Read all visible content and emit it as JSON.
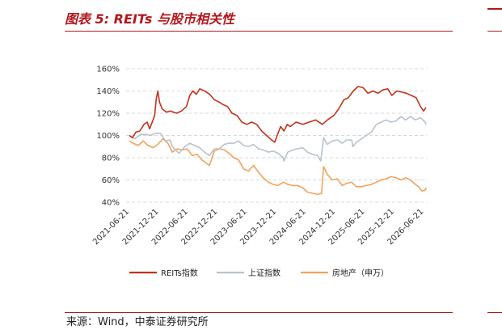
{
  "figure": {
    "title": "图表 5: REITs 与股市相关性",
    "source": "来源：Wind，中泰证券研究所"
  },
  "colors": {
    "title_red": "#b2171c",
    "reits": "#c4321b",
    "sse": "#b8c3cc",
    "real_estate": "#f4a25a",
    "grid": "#cccccc"
  },
  "chart_data": {
    "type": "line",
    "xlabel": "",
    "ylabel": "",
    "ylim": [
      40,
      160
    ],
    "y_ticks": [
      "40%",
      "60%",
      "80%",
      "100%",
      "120%",
      "140%",
      "160%"
    ],
    "y_tick_values": [
      40,
      60,
      80,
      100,
      120,
      140,
      160
    ],
    "x_ticks": [
      "2021-06-21",
      "2021-12-21",
      "2022-06-21",
      "2022-12-21",
      "2023-06-21",
      "2023-12-21",
      "2024-06-21",
      "2024-12-21",
      "2025-06-21",
      "2025-12-21",
      "2026-06-21"
    ],
    "x_range": [
      "2021-06-01",
      "2026-07-10"
    ],
    "grid": "horizontal dashed",
    "legend_position": "bottom",
    "series": [
      {
        "name": "REITs指数",
        "color": "#c4321b",
        "points": [
          [
            "2021-06-21",
            100
          ],
          [
            "2021-07-10",
            98
          ],
          [
            "2021-07-31",
            103
          ],
          [
            "2021-08-25",
            104
          ],
          [
            "2021-09-20",
            110
          ],
          [
            "2021-10-10",
            112
          ],
          [
            "2021-10-25",
            106
          ],
          [
            "2021-11-10",
            112
          ],
          [
            "2021-11-25",
            118
          ],
          [
            "2021-12-05",
            133
          ],
          [
            "2021-12-15",
            140
          ],
          [
            "2021-12-25",
            130
          ],
          [
            "2022-01-10",
            124
          ],
          [
            "2022-02-05",
            121
          ],
          [
            "2022-03-01",
            122
          ],
          [
            "2022-04-10",
            120
          ],
          [
            "2022-05-10",
            122
          ],
          [
            "2022-06-10",
            126
          ],
          [
            "2022-07-01",
            136
          ],
          [
            "2022-07-20",
            140
          ],
          [
            "2022-08-10",
            137
          ],
          [
            "2022-09-01",
            142
          ],
          [
            "2022-10-01",
            140
          ],
          [
            "2022-11-01",
            137
          ],
          [
            "2022-12-01",
            132
          ],
          [
            "2022-12-31",
            130
          ],
          [
            "2023-01-20",
            128
          ],
          [
            "2023-02-20",
            126
          ],
          [
            "2023-03-20",
            120
          ],
          [
            "2023-04-20",
            118
          ],
          [
            "2023-05-20",
            112
          ],
          [
            "2023-06-20",
            110
          ],
          [
            "2023-07-20",
            112
          ],
          [
            "2023-08-20",
            110
          ],
          [
            "2023-09-20",
            104
          ],
          [
            "2023-10-20",
            100
          ],
          [
            "2023-11-20",
            96
          ],
          [
            "2023-12-10",
            94
          ],
          [
            "2023-12-25",
            100
          ],
          [
            "2024-01-15",
            108
          ],
          [
            "2024-02-05",
            104
          ],
          [
            "2024-02-25",
            110
          ],
          [
            "2024-03-15",
            108
          ],
          [
            "2024-04-20",
            112
          ],
          [
            "2024-06-01",
            110
          ],
          [
            "2024-07-10",
            112
          ],
          [
            "2024-08-20",
            114
          ],
          [
            "2024-09-30",
            110
          ],
          [
            "2024-11-01",
            114
          ],
          [
            "2024-12-10",
            118
          ],
          [
            "2025-01-10",
            124
          ],
          [
            "2025-02-10",
            132
          ],
          [
            "2025-03-10",
            134
          ],
          [
            "2025-04-10",
            140
          ],
          [
            "2025-05-10",
            144
          ],
          [
            "2025-06-10",
            143
          ],
          [
            "2025-07-10",
            138
          ],
          [
            "2025-08-10",
            140
          ],
          [
            "2025-09-10",
            138
          ],
          [
            "2025-10-10",
            141
          ],
          [
            "2025-11-10",
            142
          ],
          [
            "2025-12-05",
            136
          ],
          [
            "2026-01-05",
            140
          ],
          [
            "2026-02-05",
            139
          ],
          [
            "2026-03-05",
            138
          ],
          [
            "2026-04-05",
            136
          ],
          [
            "2026-05-05",
            134
          ],
          [
            "2026-06-01",
            126
          ],
          [
            "2026-06-20",
            122
          ],
          [
            "2026-07-05",
            125
          ]
        ]
      },
      {
        "name": "上证指数",
        "color": "#b8c3cc",
        "points": [
          [
            "2021-06-21",
            100
          ],
          [
            "2021-07-25",
            97
          ],
          [
            "2021-08-31",
            101
          ],
          [
            "2021-09-30",
            101
          ],
          [
            "2021-10-31",
            100
          ],
          [
            "2021-11-30",
            102
          ],
          [
            "2021-12-31",
            102
          ],
          [
            "2022-01-31",
            95
          ],
          [
            "2022-02-28",
            96
          ],
          [
            "2022-03-15",
            90
          ],
          [
            "2022-04-25",
            84
          ],
          [
            "2022-05-31",
            90
          ],
          [
            "2022-06-30",
            93
          ],
          [
            "2022-07-31",
            91
          ],
          [
            "2022-08-31",
            89
          ],
          [
            "2022-09-30",
            85
          ],
          [
            "2022-10-31",
            82
          ],
          [
            "2022-11-30",
            88
          ],
          [
            "2022-12-31",
            88
          ],
          [
            "2023-01-31",
            92
          ],
          [
            "2023-02-28",
            93
          ],
          [
            "2023-03-31",
            93
          ],
          [
            "2023-04-30",
            95
          ],
          [
            "2023-05-31",
            91
          ],
          [
            "2023-06-30",
            90
          ],
          [
            "2023-07-31",
            92
          ],
          [
            "2023-08-31",
            88
          ],
          [
            "2023-09-30",
            87
          ],
          [
            "2023-10-31",
            85
          ],
          [
            "2023-11-30",
            86
          ],
          [
            "2023-12-31",
            84
          ],
          [
            "2024-01-31",
            80
          ],
          [
            "2024-02-05",
            77
          ],
          [
            "2024-02-28",
            85
          ],
          [
            "2024-03-31",
            87
          ],
          [
            "2024-04-30",
            88
          ],
          [
            "2024-05-31",
            89
          ],
          [
            "2024-06-30",
            85
          ],
          [
            "2024-07-31",
            83
          ],
          [
            "2024-08-31",
            82
          ],
          [
            "2024-09-20",
            77
          ],
          [
            "2024-10-08",
            98
          ],
          [
            "2024-10-31",
            92
          ],
          [
            "2024-11-30",
            95
          ],
          [
            "2024-12-31",
            96
          ],
          [
            "2025-01-31",
            93
          ],
          [
            "2025-02-28",
            96
          ],
          [
            "2025-03-31",
            96
          ],
          [
            "2025-04-08",
            90
          ],
          [
            "2025-04-30",
            94
          ],
          [
            "2025-05-31",
            97
          ],
          [
            "2025-06-30",
            100
          ],
          [
            "2025-07-31",
            103
          ],
          [
            "2025-08-31",
            110
          ],
          [
            "2025-09-30",
            112
          ],
          [
            "2025-10-31",
            114
          ],
          [
            "2025-11-30",
            112
          ],
          [
            "2025-12-31",
            113
          ],
          [
            "2026-01-31",
            117
          ],
          [
            "2026-02-28",
            114
          ],
          [
            "2026-03-31",
            117
          ],
          [
            "2026-04-30",
            114
          ],
          [
            "2026-05-31",
            116
          ],
          [
            "2026-06-30",
            112
          ],
          [
            "2026-07-05",
            110
          ]
        ]
      },
      {
        "name": "房地产（申万）",
        "color": "#f4a25a",
        "points": [
          [
            "2021-06-21",
            95
          ],
          [
            "2021-07-15",
            93
          ],
          [
            "2021-08-15",
            91
          ],
          [
            "2021-09-15",
            95
          ],
          [
            "2021-10-15",
            91
          ],
          [
            "2021-11-15",
            89
          ],
          [
            "2021-12-15",
            92
          ],
          [
            "2022-01-15",
            97
          ],
          [
            "2022-02-15",
            93
          ],
          [
            "2022-03-15",
            85
          ],
          [
            "2022-04-15",
            88
          ],
          [
            "2022-05-15",
            87
          ],
          [
            "2022-06-15",
            88
          ],
          [
            "2022-07-15",
            82
          ],
          [
            "2022-08-15",
            83
          ],
          [
            "2022-09-15",
            78
          ],
          [
            "2022-10-31",
            73
          ],
          [
            "2022-11-30",
            86
          ],
          [
            "2022-12-31",
            88
          ],
          [
            "2023-01-31",
            87
          ],
          [
            "2023-02-28",
            84
          ],
          [
            "2023-03-31",
            80
          ],
          [
            "2023-04-30",
            78
          ],
          [
            "2023-05-31",
            70
          ],
          [
            "2023-06-30",
            68
          ],
          [
            "2023-07-31",
            73
          ],
          [
            "2023-08-31",
            67
          ],
          [
            "2023-09-30",
            62
          ],
          [
            "2023-10-31",
            58
          ],
          [
            "2023-11-30",
            56
          ],
          [
            "2023-12-31",
            55
          ],
          [
            "2024-01-31",
            58
          ],
          [
            "2024-02-28",
            56
          ],
          [
            "2024-03-31",
            55
          ],
          [
            "2024-04-30",
            55
          ],
          [
            "2024-05-31",
            53
          ],
          [
            "2024-06-30",
            49
          ],
          [
            "2024-07-31",
            48
          ],
          [
            "2024-08-31",
            47
          ],
          [
            "2024-09-25",
            48
          ],
          [
            "2024-10-08",
            72
          ],
          [
            "2024-10-31",
            65
          ],
          [
            "2024-11-30",
            60
          ],
          [
            "2024-12-31",
            61
          ],
          [
            "2025-01-31",
            55
          ],
          [
            "2025-02-28",
            57
          ],
          [
            "2025-03-31",
            58
          ],
          [
            "2025-04-30",
            54
          ],
          [
            "2025-05-31",
            54
          ],
          [
            "2025-06-30",
            55
          ],
          [
            "2025-07-31",
            56
          ],
          [
            "2025-08-31",
            58
          ],
          [
            "2025-09-30",
            60
          ],
          [
            "2025-10-31",
            61
          ],
          [
            "2025-11-30",
            63
          ],
          [
            "2025-12-31",
            62
          ],
          [
            "2026-01-31",
            60
          ],
          [
            "2026-02-28",
            62
          ],
          [
            "2026-03-31",
            60
          ],
          [
            "2026-04-30",
            56
          ],
          [
            "2026-05-20",
            54
          ],
          [
            "2026-06-10",
            50
          ],
          [
            "2026-06-30",
            51
          ],
          [
            "2026-07-05",
            53
          ]
        ]
      }
    ]
  }
}
